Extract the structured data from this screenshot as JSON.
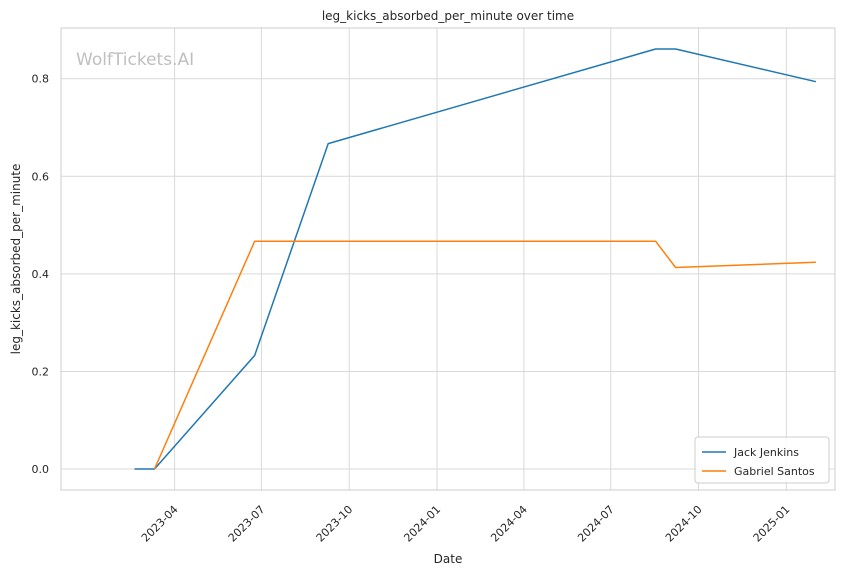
{
  "chart_data": {
    "type": "line",
    "title": "leg_kicks_absorbed_per_minute over time",
    "xlabel": "Date",
    "ylabel": "leg_kicks_absorbed_per_minute",
    "watermark": "WolfTickets.AI",
    "grid": true,
    "legend_position": "bottom-right",
    "xlim": [
      "2022-12-03",
      "2025-02-21"
    ],
    "ylim": [
      -0.043,
      0.904
    ],
    "x_ticks": [
      "2023-04",
      "2023-07",
      "2023-10",
      "2024-01",
      "2024-04",
      "2024-07",
      "2024-10",
      "2025-01"
    ],
    "y_ticks": [
      "0.0",
      "0.2",
      "0.4",
      "0.6",
      "0.8"
    ],
    "series": [
      {
        "name": "Jack Jenkins",
        "color": "#1f77b4",
        "points": [
          {
            "x": "2023-02-18",
            "y": 0.0
          },
          {
            "x": "2023-03-11",
            "y": 0.0
          },
          {
            "x": "2023-06-24",
            "y": 0.233
          },
          {
            "x": "2023-09-09",
            "y": 0.667
          },
          {
            "x": "2024-08-17",
            "y": 0.861
          },
          {
            "x": "2024-09-07",
            "y": 0.861
          },
          {
            "x": "2025-02-01",
            "y": 0.794
          }
        ]
      },
      {
        "name": "Gabriel Santos",
        "color": "#ff7f0e",
        "points": [
          {
            "x": "2023-03-11",
            "y": 0.0
          },
          {
            "x": "2023-06-24",
            "y": 0.467
          },
          {
            "x": "2024-08-17",
            "y": 0.467
          },
          {
            "x": "2024-09-07",
            "y": 0.413
          },
          {
            "x": "2025-02-01",
            "y": 0.424
          }
        ]
      }
    ]
  }
}
